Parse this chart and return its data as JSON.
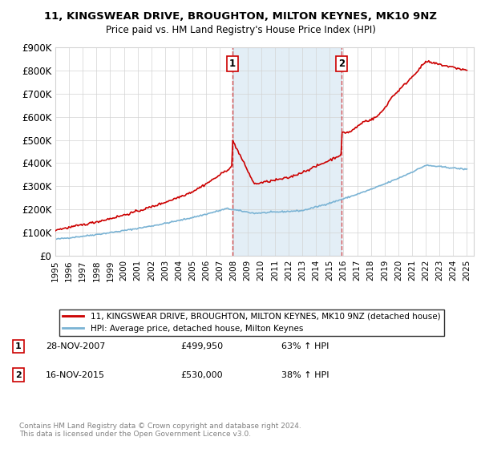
{
  "title": "11, KINGSWEAR DRIVE, BROUGHTON, MILTON KEYNES, MK10 9NZ",
  "subtitle": "Price paid vs. HM Land Registry's House Price Index (HPI)",
  "ylabel_vals": [
    "£0",
    "£100K",
    "£200K",
    "£300K",
    "£400K",
    "£500K",
    "£600K",
    "£700K",
    "£800K",
    "£900K"
  ],
  "ylim": [
    0,
    900000
  ],
  "xlim_start": 1995.0,
  "xlim_end": 2025.5,
  "transaction1_date": 2007.91,
  "transaction1_price": 499950,
  "transaction2_date": 2015.88,
  "transaction2_price": 530000,
  "hpi_color": "#7ab3d4",
  "property_color": "#cc0000",
  "vline_color": "#cc0000",
  "highlight_color": "#cce0f0",
  "highlight_alpha": 0.55,
  "legend_property_label": "11, KINGSWEAR DRIVE, BROUGHTON, MILTON KEYNES, MK10 9NZ (detached house)",
  "legend_hpi_label": "HPI: Average price, detached house, Milton Keynes",
  "annotation1_date": "28-NOV-2007",
  "annotation1_price": "£499,950",
  "annotation1_pct": "63% ↑ HPI",
  "annotation2_date": "16-NOV-2015",
  "annotation2_price": "£530,000",
  "annotation2_pct": "38% ↑ HPI",
  "footer": "Contains HM Land Registry data © Crown copyright and database right 2024.\nThis data is licensed under the Open Government Licence v3.0."
}
